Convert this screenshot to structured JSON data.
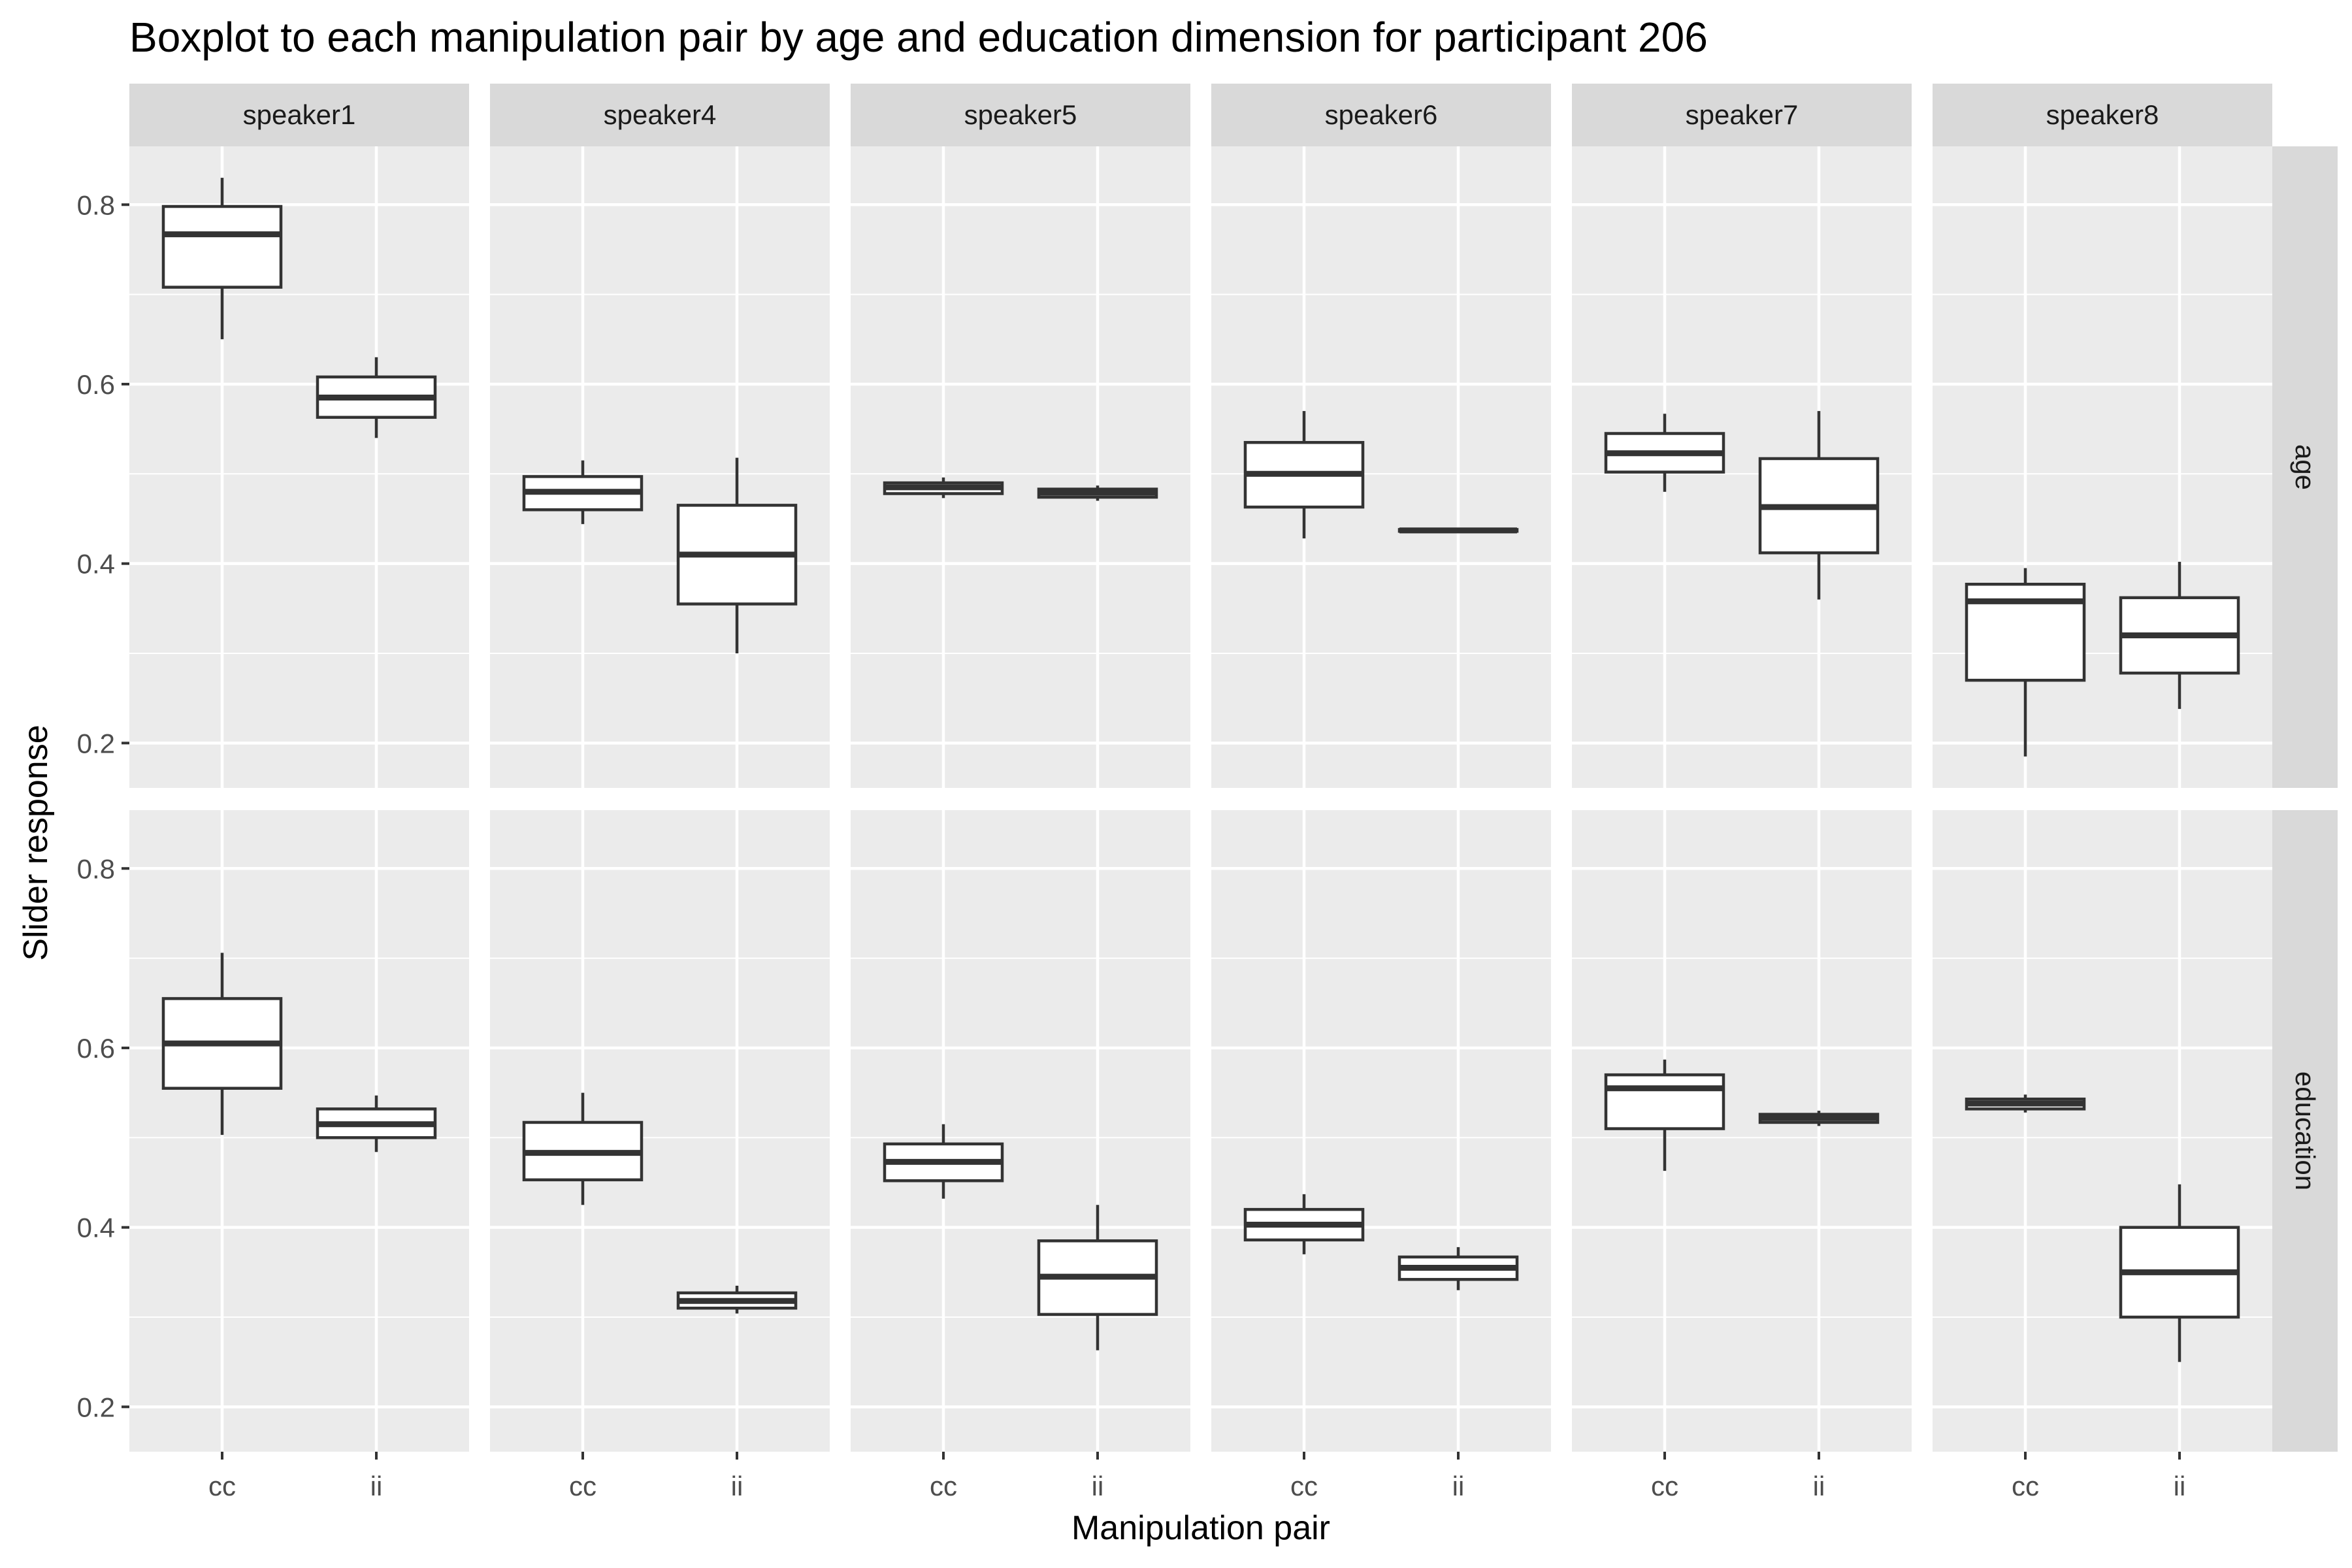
{
  "chart_data": {
    "type": "boxplot",
    "title": "Boxplot to each manipulation pair by age and education dimension for participant 206",
    "xlabel": "Manipulation pair",
    "ylabel": "Slider response",
    "ylim": [
      0.15,
      0.865
    ],
    "yticks": [
      0.2,
      0.4,
      0.6,
      0.8
    ],
    "ytick_labels": [
      "0.2",
      "0.4",
      "0.6",
      "0.8"
    ],
    "categories": [
      "cc",
      "ii"
    ],
    "columns": [
      "speaker1",
      "speaker4",
      "speaker5",
      "speaker6",
      "speaker7",
      "speaker8"
    ],
    "rows": [
      "age",
      "education"
    ],
    "grid": true,
    "box_color": "#333333",
    "panel_bg": "#ebebeb",
    "strip_bg": "#d9d9d9",
    "boxes": {
      "age": {
        "speaker1": {
          "cc": [
            0.65,
            0.708,
            0.767,
            0.798,
            0.83
          ],
          "ii": [
            0.54,
            0.563,
            0.585,
            0.608,
            0.63
          ]
        },
        "speaker4": {
          "cc": [
            0.444,
            0.46,
            0.48,
            0.497,
            0.515
          ],
          "ii": [
            0.3,
            0.355,
            0.41,
            0.465,
            0.518
          ]
        },
        "speaker5": {
          "cc": [
            0.473,
            0.478,
            0.485,
            0.49,
            0.496
          ],
          "ii": [
            0.47,
            0.474,
            0.479,
            0.483,
            0.487
          ]
        },
        "speaker6": {
          "cc": [
            0.428,
            0.463,
            0.5,
            0.535,
            0.57
          ],
          "ii": [
            0.435,
            0.436,
            0.437,
            0.438,
            0.439
          ]
        },
        "speaker7": {
          "cc": [
            0.48,
            0.502,
            0.523,
            0.545,
            0.567
          ],
          "ii": [
            0.36,
            0.412,
            0.463,
            0.517,
            0.57
          ]
        },
        "speaker8": {
          "cc": [
            0.185,
            0.27,
            0.358,
            0.377,
            0.395
          ],
          "ii": [
            0.238,
            0.278,
            0.32,
            0.362,
            0.402
          ]
        }
      },
      "education": {
        "speaker1": {
          "cc": [
            0.503,
            0.555,
            0.605,
            0.655,
            0.706
          ],
          "ii": [
            0.484,
            0.5,
            0.515,
            0.532,
            0.547
          ]
        },
        "speaker4": {
          "cc": [
            0.425,
            0.453,
            0.483,
            0.517,
            0.55
          ],
          "ii": [
            0.304,
            0.31,
            0.318,
            0.327,
            0.335
          ]
        },
        "speaker5": {
          "cc": [
            0.432,
            0.452,
            0.473,
            0.493,
            0.515
          ],
          "ii": [
            0.263,
            0.303,
            0.345,
            0.385,
            0.425
          ]
        },
        "speaker6": {
          "cc": [
            0.37,
            0.386,
            0.403,
            0.42,
            0.437
          ],
          "ii": [
            0.33,
            0.342,
            0.355,
            0.367,
            0.378
          ]
        },
        "speaker7": {
          "cc": [
            0.463,
            0.51,
            0.555,
            0.57,
            0.587
          ],
          "ii": [
            0.513,
            0.517,
            0.522,
            0.526,
            0.53
          ]
        },
        "speaker8": {
          "cc": [
            0.528,
            0.532,
            0.538,
            0.543,
            0.548
          ],
          "ii": [
            0.25,
            0.3,
            0.35,
            0.4,
            0.448
          ]
        }
      }
    }
  }
}
